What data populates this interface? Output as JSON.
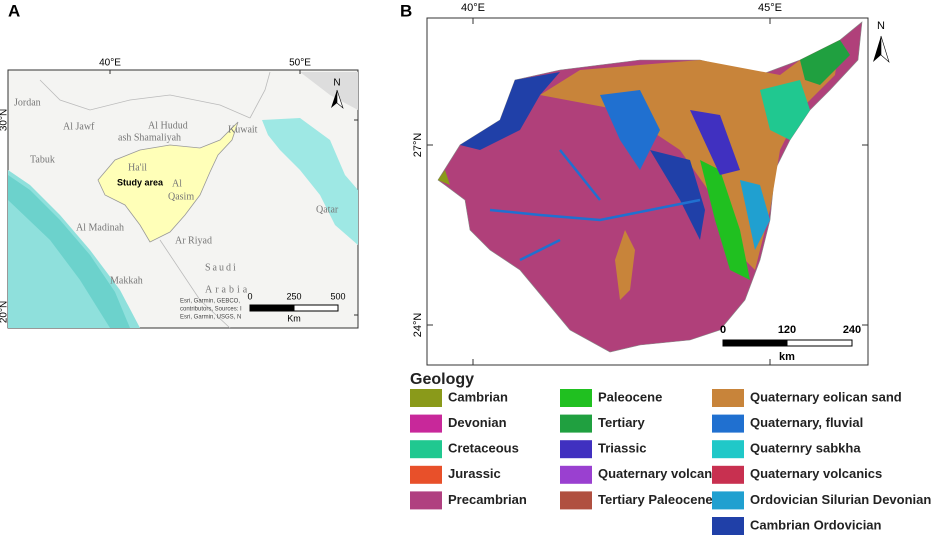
{
  "panel_a": {
    "label": "A",
    "lon_labels": [
      "40°E",
      "50°E"
    ],
    "lat_labels": [
      "30°N",
      "20°N"
    ],
    "places": [
      "Jordan",
      "Al Jawf",
      "Al Hudud",
      "ash Shamaliyah",
      "Kuwait",
      "Tabuk",
      "Ha'il",
      "Study area",
      "Al",
      "Qasim",
      "Qatar",
      "Al Madinah",
      "Ar Riyad",
      "Saudi",
      "Arabia",
      "Makkah"
    ],
    "attribution": [
      "Esri, Garmin, GEBCO,",
      "contributors, Sources: I",
      "Esri, Garmin, USGS, N"
    ],
    "scale_labels": [
      "0",
      "250",
      "500"
    ],
    "scale_unit": "Km",
    "north": "N"
  },
  "panel_b": {
    "label": "B",
    "lon_labels": [
      "40°E",
      "45°E"
    ],
    "lat_labels": [
      "27°N",
      "24°N"
    ],
    "scale_labels": [
      "0",
      "120",
      "240"
    ],
    "scale_unit": "km",
    "north": "N"
  },
  "legend": {
    "title": "Geology",
    "columns": [
      [
        {
          "label": "Cambrian",
          "color": "#8a9a1a"
        },
        {
          "label": "Devonian",
          "color": "#c8289a"
        },
        {
          "label": "Cretaceous",
          "color": "#20c890"
        },
        {
          "label": "Jurassic",
          "color": "#e8502a"
        },
        {
          "label": "Precambrian",
          "color": "#b04080"
        }
      ],
      [
        {
          "label": "Paleocene",
          "color": "#20c020"
        },
        {
          "label": "Tertiary",
          "color": "#20a040"
        },
        {
          "label": "Triassic",
          "color": "#4030c0"
        },
        {
          "label": "Quaternary volcanics",
          "color": "#9a40d0"
        },
        {
          "label": "Tertiary Paleocene",
          "color": "#b05040"
        }
      ],
      [
        {
          "label": "Quaternary eolican sand",
          "color": "#c8843a"
        },
        {
          "label": "Quaternary, fluvial",
          "color": "#2070d0"
        },
        {
          "label": "Quaternry sabkha",
          "color": "#20c8c8"
        },
        {
          "label": "Quaternary volcanics",
          "color": "#c83050"
        },
        {
          "label": "Ordovician Silurian Devonian",
          "color": "#20a0d0"
        },
        {
          "label": "Cambrian Ordovician",
          "color": "#2040a8"
        }
      ]
    ]
  }
}
